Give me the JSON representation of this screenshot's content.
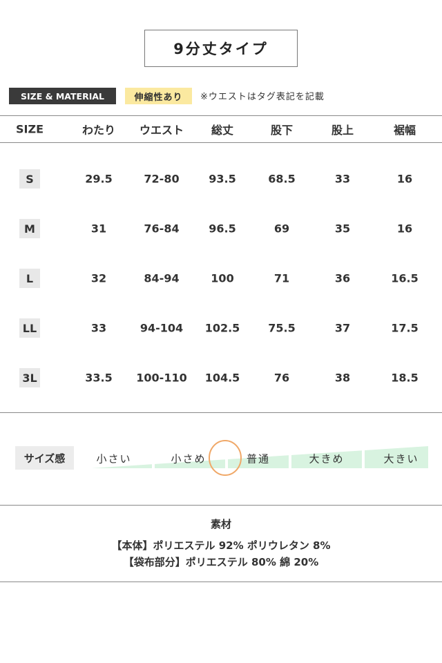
{
  "title": "9分丈タイプ",
  "tags": {
    "section": "SIZE & MATERIAL",
    "stretch": "伸縮性あり",
    "note": "※ウエストはタグ表記を記載"
  },
  "table": {
    "headers": [
      "SIZE",
      "わたり",
      "ウエスト",
      "総丈",
      "股下",
      "股上",
      "裾幅"
    ],
    "rows": [
      [
        "S",
        "29.5",
        "72-80",
        "93.5",
        "68.5",
        "33",
        "16"
      ],
      [
        "M",
        "31",
        "76-84",
        "96.5",
        "69",
        "35",
        "16"
      ],
      [
        "L",
        "32",
        "84-94",
        "100",
        "71",
        "36",
        "16.5"
      ],
      [
        "LL",
        "33",
        "94-104",
        "102.5",
        "75.5",
        "37",
        "17.5"
      ],
      [
        "3L",
        "33.5",
        "100-110",
        "104.5",
        "76",
        "38",
        "18.5"
      ]
    ]
  },
  "fit": {
    "label": "サイズ感",
    "options": [
      "小さい",
      "小さめ",
      "普通",
      "大きめ",
      "大きい"
    ],
    "selected_position": "between 小さめ and 普通",
    "colors": {
      "wedge": "#d8f3e0",
      "marker": "#f0a868"
    }
  },
  "material": {
    "title": "素材",
    "lines": [
      "【本体】ポリエステル 92% ポリウレタン 8%",
      "【袋布部分】ポリエステル 80% 綿 20%"
    ]
  }
}
